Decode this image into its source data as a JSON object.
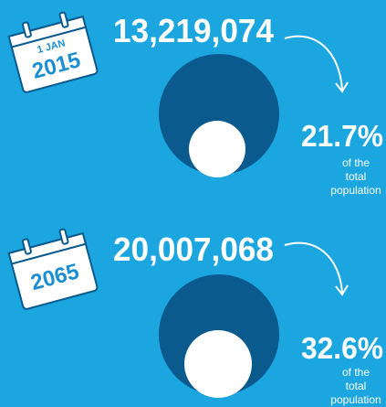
{
  "panels": [
    {
      "date_day": "1 JAN",
      "year": "2015",
      "count": "13,219,074",
      "percent": "21.7%",
      "caption": [
        "of the",
        "total",
        "population"
      ]
    },
    {
      "year": "2065",
      "count": "20,007,068",
      "percent": "32.6%",
      "caption": [
        "of the",
        "total",
        "population"
      ]
    }
  ]
}
